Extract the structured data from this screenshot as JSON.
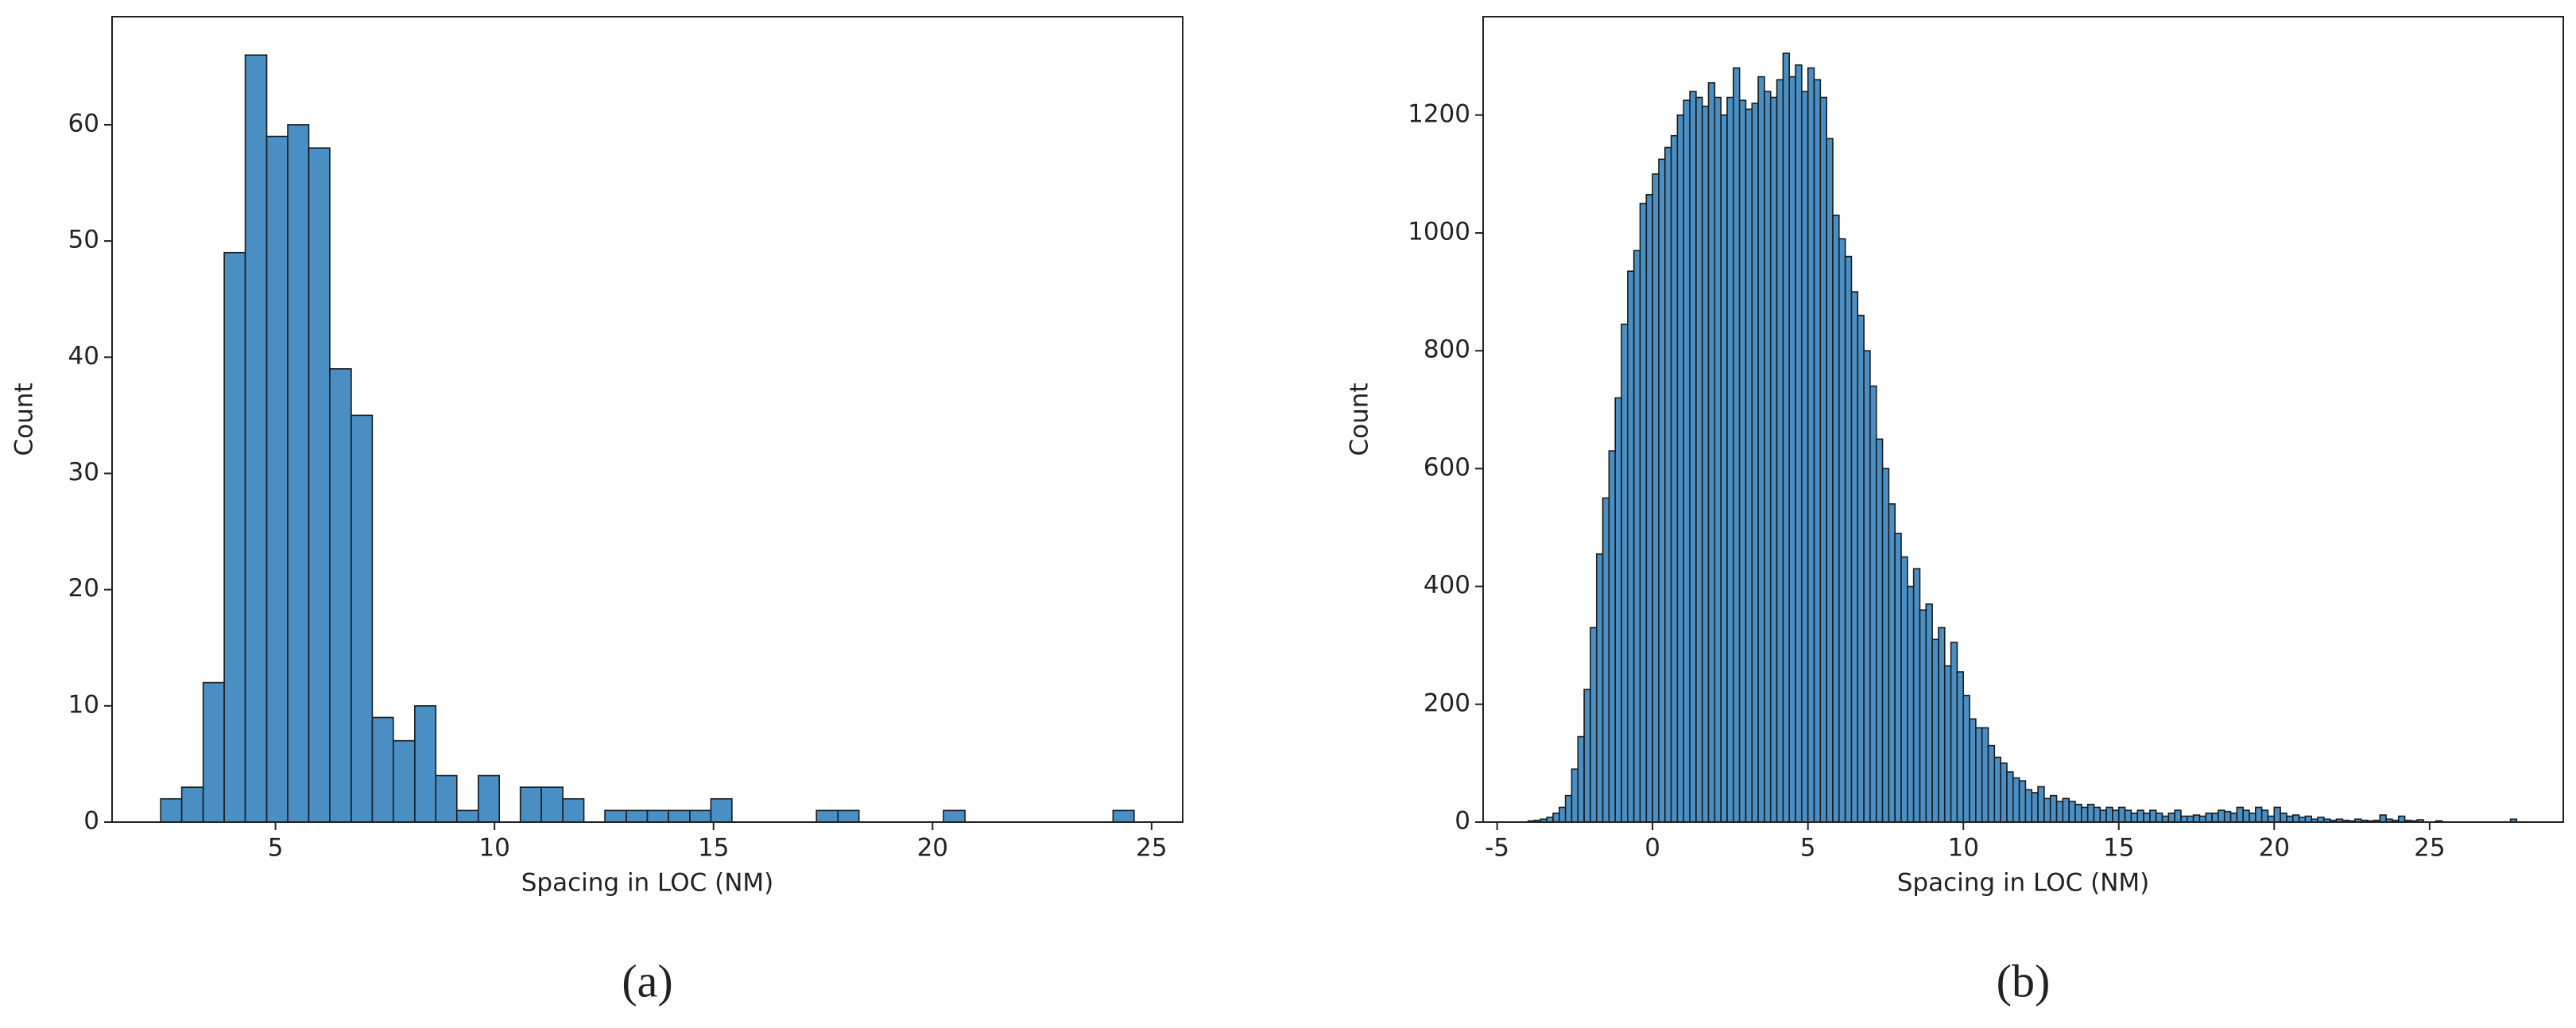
{
  "chart_data": [
    {
      "type": "histogram",
      "caption": "(a)",
      "xlabel": "Spacing in LOC (NM)",
      "ylabel": "Count",
      "color": "#4a8fc4",
      "bins": [
        2.38,
        2.86,
        3.35,
        3.83,
        4.31,
        4.8,
        5.28,
        5.76,
        6.24,
        6.73,
        7.21,
        7.69,
        8.18,
        8.66,
        9.14,
        9.63,
        10.11,
        10.59,
        11.07,
        11.56,
        12.04,
        12.52,
        13.01,
        13.49,
        13.97,
        14.46,
        14.94,
        15.42,
        15.9,
        16.39,
        16.87,
        17.35,
        17.84,
        18.32,
        18.8,
        19.29,
        19.77,
        20.25,
        20.74,
        21.22,
        21.7,
        22.18,
        22.67,
        23.15,
        23.63,
        24.12,
        24.6
      ],
      "values": [
        2,
        3,
        12,
        49,
        66,
        59,
        60,
        58,
        39,
        35,
        9,
        7,
        10,
        4,
        1,
        4,
        0,
        3,
        3,
        2,
        0,
        1,
        1,
        1,
        1,
        1,
        2,
        0,
        0,
        0,
        0,
        1,
        1,
        0,
        0,
        0,
        0,
        1,
        0,
        0,
        0,
        0,
        0,
        0,
        0,
        1
      ],
      "xlim": [
        1.27,
        25.71
      ],
      "ylim": [
        0,
        69.3
      ],
      "xticks": [
        5,
        10,
        15,
        20,
        25
      ],
      "yticks": [
        0,
        10,
        20,
        30,
        40,
        50,
        60
      ]
    },
    {
      "type": "histogram",
      "caption": "(b)",
      "xlabel": "Spacing in LOC (NM)",
      "ylabel": "Count",
      "color": "#4a8fc4",
      "bins": [
        -4,
        -3.8,
        -3.6,
        -3.4,
        -3.2,
        -3,
        -2.8,
        -2.6,
        -2.4,
        -2.2,
        -2,
        -1.8,
        -1.6,
        -1.4,
        -1.2,
        -1,
        -0.8,
        -0.6,
        -0.4,
        -0.2,
        0,
        0.2,
        0.4,
        0.6,
        0.8,
        1,
        1.2,
        1.4,
        1.6,
        1.8,
        2,
        2.2,
        2.4,
        2.6,
        2.8,
        3,
        3.2,
        3.4,
        3.6,
        3.8,
        4,
        4.2,
        4.4,
        4.6,
        4.8,
        5,
        5.2,
        5.4,
        5.6,
        5.8,
        6,
        6.2,
        6.4,
        6.6,
        6.8,
        7,
        7.2,
        7.4,
        7.6,
        7.8,
        8,
        8.2,
        8.4,
        8.6,
        8.8,
        9,
        9.2,
        9.4,
        9.6,
        9.8,
        10,
        10.2,
        10.4,
        10.6,
        10.8,
        11,
        11.2,
        11.4,
        11.6,
        11.8,
        12,
        12.2,
        12.4,
        12.6,
        12.8,
        13,
        13.2,
        13.4,
        13.6,
        13.8,
        14,
        14.2,
        14.4,
        14.6,
        14.8,
        15,
        15.2,
        15.4,
        15.6,
        15.8,
        16,
        16.2,
        16.4,
        16.6,
        16.8,
        17,
        17.2,
        17.4,
        17.6,
        17.8,
        18,
        18.2,
        18.4,
        18.6,
        18.8,
        19,
        19.2,
        19.4,
        19.6,
        19.8,
        20,
        20.2,
        20.4,
        20.6,
        20.8,
        21,
        21.2,
        21.4,
        21.6,
        21.8,
        22,
        22.2,
        22.4,
        22.6,
        22.8,
        23,
        23.2,
        23.4,
        23.6,
        23.8,
        24,
        24.2,
        24.4,
        24.6,
        24.8,
        25,
        25.2,
        25.4,
        25.6,
        25.8,
        26,
        26.2,
        26.4,
        26.6,
        26.8,
        27,
        27.2,
        27.4,
        27.6,
        27.8,
        28
      ],
      "values": [
        2,
        3,
        5,
        8,
        15,
        25,
        45,
        90,
        145,
        225,
        330,
        455,
        550,
        630,
        720,
        845,
        935,
        970,
        1050,
        1065,
        1100,
        1125,
        1145,
        1165,
        1200,
        1225,
        1240,
        1230,
        1215,
        1255,
        1230,
        1200,
        1230,
        1280,
        1225,
        1210,
        1220,
        1265,
        1240,
        1230,
        1260,
        1305,
        1265,
        1285,
        1240,
        1280,
        1260,
        1230,
        1160,
        1030,
        990,
        960,
        900,
        860,
        800,
        740,
        650,
        600,
        540,
        490,
        450,
        400,
        430,
        360,
        370,
        310,
        330,
        265,
        305,
        255,
        215,
        175,
        160,
        160,
        130,
        110,
        100,
        85,
        75,
        70,
        55,
        50,
        60,
        40,
        45,
        35,
        40,
        35,
        30,
        25,
        30,
        25,
        20,
        25,
        20,
        25,
        20,
        15,
        20,
        15,
        20,
        15,
        10,
        15,
        20,
        10,
        10,
        12,
        10,
        15,
        15,
        20,
        18,
        15,
        25,
        20,
        15,
        25,
        20,
        10,
        25,
        15,
        10,
        12,
        8,
        10,
        5,
        8,
        5,
        3,
        5,
        3,
        2,
        5,
        3,
        2,
        3,
        12,
        5,
        3,
        10,
        3,
        2,
        4,
        0,
        0,
        2,
        0,
        0,
        0,
        0,
        0,
        0,
        0,
        0,
        0,
        0,
        0,
        5,
        0
      ],
      "xlim": [
        -5.45,
        29.3
      ],
      "ylim": [
        0,
        1367
      ],
      "xticks": [
        -5,
        0,
        5,
        10,
        15,
        20,
        25
      ],
      "yticks": [
        0,
        200,
        400,
        600,
        800,
        1000,
        1200
      ]
    }
  ]
}
